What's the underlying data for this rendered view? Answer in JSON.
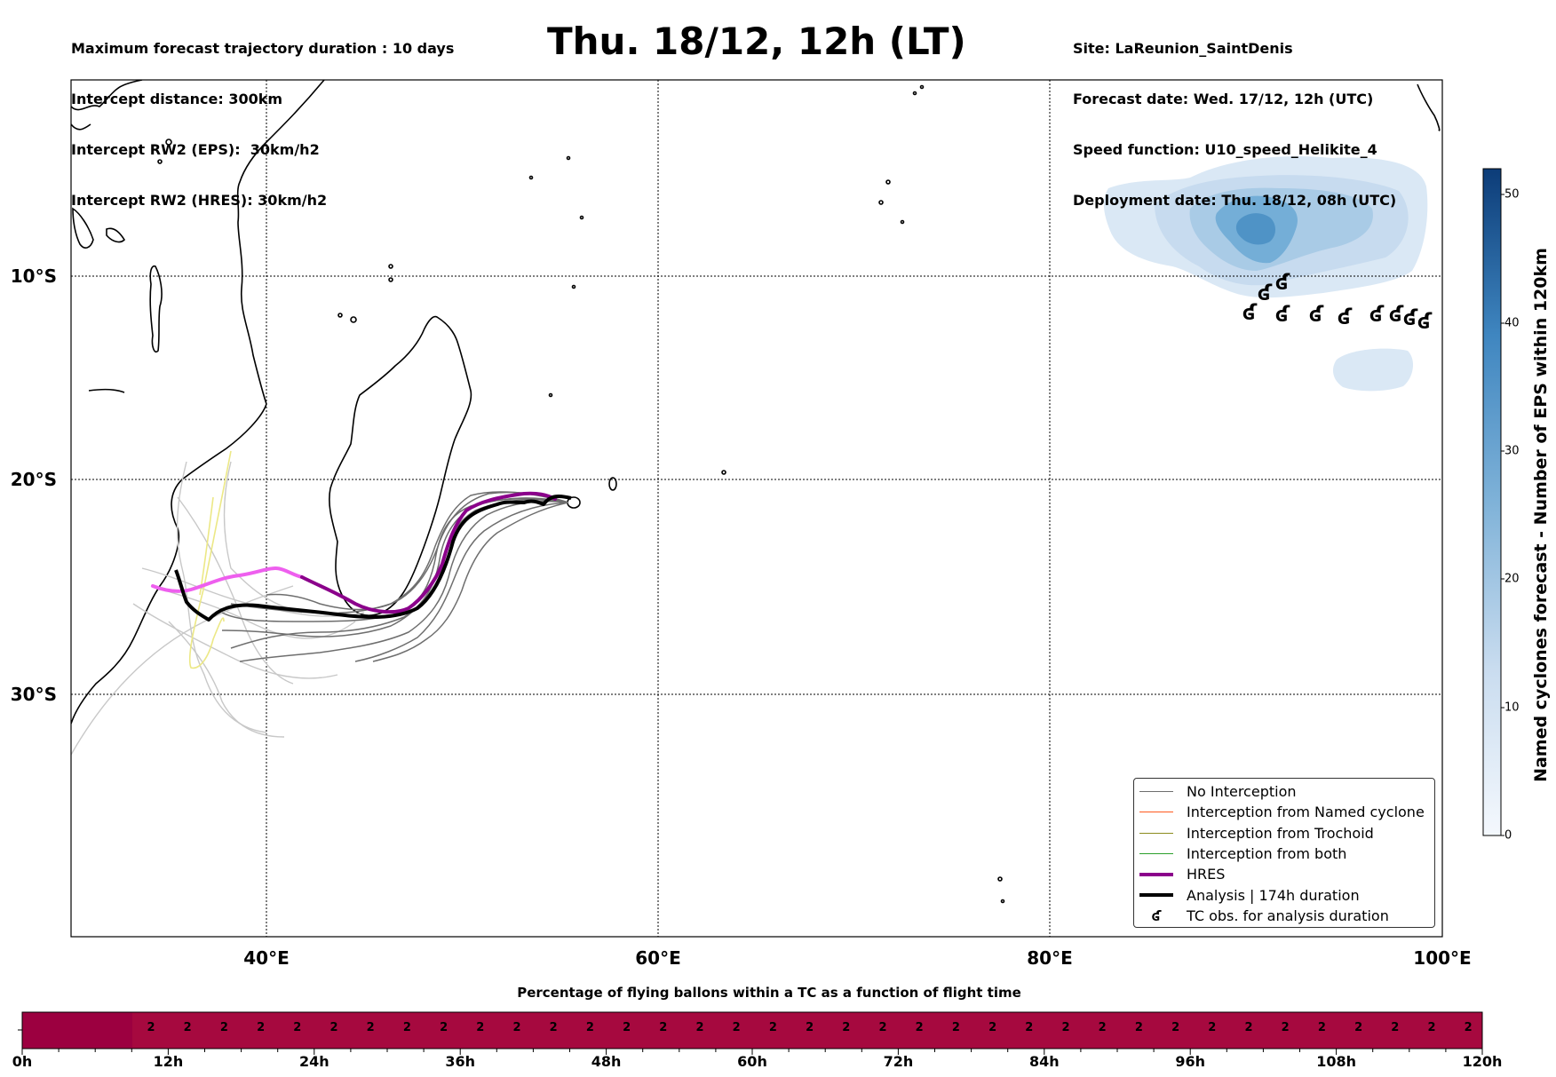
{
  "header": {
    "left_lines": [
      "Maximum forecast trajectory duration : 10 days",
      "Intercept distance: 300km",
      "Intercept RW2 (EPS):  30km/h2",
      "Intercept RW2 (HRES): 30km/h2"
    ],
    "right_lines": [
      "Site: LaReunion_SaintDenis",
      "Forecast date: Wed. 17/12, 12h (UTC)",
      "Speed function: U10_speed_Helikite_4",
      "Deployment date: Thu. 18/12, 08h (UTC)"
    ],
    "title": "Thu. 18/12, 12h (LT)"
  },
  "map": {
    "lon_labels": [
      "40°E",
      "60°E",
      "80°E",
      "100°E"
    ],
    "lat_labels": [
      "10°S",
      "20°S",
      "30°S"
    ],
    "colors": {
      "no_interception": "#6e6e6e",
      "named_cyclone": "#ff5a1e",
      "trochoid": "#8c8c1e",
      "both": "#2ca02c",
      "hres": "#8b008b",
      "analysis": "#000000"
    }
  },
  "legend": {
    "items": [
      {
        "label": "No Interception",
        "icon": "line-gray"
      },
      {
        "label": "Interception from Named cyclone",
        "icon": "line-orange"
      },
      {
        "label": "Interception from Trochoid",
        "icon": "line-olive"
      },
      {
        "label": "Interception from both",
        "icon": "line-green"
      },
      {
        "label": "HRES",
        "icon": "line-purple-thick"
      },
      {
        "label": "Analysis | 174h duration",
        "icon": "line-black-thick"
      },
      {
        "label": "TC obs. for analysis duration",
        "icon": "cyclone-symbol"
      }
    ]
  },
  "colorbar": {
    "label": "Named cyclones forecast - Number of EPS within 120km",
    "ticks": [
      "50",
      "40",
      "30",
      "20",
      "10",
      "0"
    ],
    "color_min": "#f4f8fd",
    "color_max": "#0c3c78"
  },
  "timeline": {
    "title": "Percentage of flying ballons within a TC as a function of flight time",
    "ticks": [
      "0h",
      "12h",
      "24h",
      "36h",
      "48h",
      "60h",
      "72h",
      "84h",
      "96h",
      "108h",
      "120h"
    ],
    "cell_value": "2",
    "cell_count": 37,
    "bar_color": "#a6093f",
    "bar_color_dark": "#9c0040"
  }
}
